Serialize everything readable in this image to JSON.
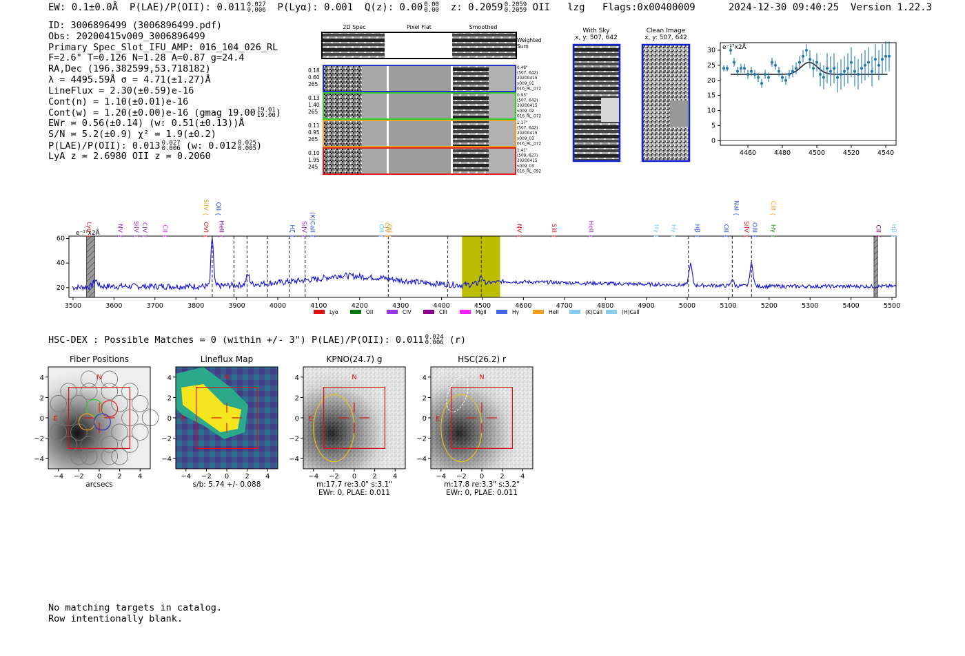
{
  "header": {
    "ew": "EW: 0.1±0.0Å",
    "plae_label": "P(LAE)/P(OII): 0.011",
    "plae_hi": "0.027",
    "plae_lo": "0.006",
    "plya": "P(Lyα): 0.001",
    "qz_label": "Q(z): 0.00",
    "qz_hi": "0.00",
    "qz_lo": "0.00",
    "z_label": "z: 0.2059",
    "z_hi": "0.2059",
    "z_lo": "0.2059",
    "line": "OII",
    "lzg": "lzg",
    "flags": "Flags:0x00400009",
    "timestamp": "2024-12-30 09:40:25",
    "version": "Version 1.22.3"
  },
  "info": {
    "id": "ID: 3006896499 (3006896499.pdf)",
    "obs": "Obs: 20200415v009_3006896499",
    "primary": "Primary Spec_Slot_IFU_AMP: 016_104_026_RL",
    "params": "F=2.6\"  T=0.126  N=1.28  A=0.87  g=24.4",
    "radec": "RA,Dec (196.382599,53.718182)",
    "lambda": "λ = 4495.59Å   σ = 4.71(±1.27)Å",
    "lineflux": "LineFlux = 2.30(±0.59)e-16",
    "contn": "Cont(n) = 1.10(±0.01)e-16",
    "contw": "Cont(w) = 1.20(±0.00)e-16 (gmag 19.00",
    "contw_hi": "19.01",
    "contw_lo": "19.00",
    "contw_close": ")",
    "ewr": "EWr = 0.56(±0.14) (w: 0.51(±0.13))Å",
    "sn": "S/N = 5.2(±0.9)  χ² = 1.9(±0.2)",
    "plae": "P(LAE)/P(OII): 0.013",
    "plae_hi": "0.027",
    "plae_lo": "0.006",
    "plae_w": "(w: 0.012",
    "plae_w_hi": "0.025",
    "plae_w_lo": "0.005",
    "plae_close": ")",
    "lyaz": "LyA z = 2.6980  OII z = 0.2060"
  },
  "cutouts": {
    "col_titles": [
      "2D Spec",
      "Pixel Flat",
      "Smoothed"
    ],
    "weighted_sum": [
      "Weighted",
      "Sum"
    ],
    "rows": [
      {
        "color": "#2233cc",
        "left": [
          "0.18",
          "0.60",
          "265"
        ],
        "right": [
          "0.48\"",
          "(507, 642)",
          "20200415",
          "v009_01",
          "016_RL_072"
        ]
      },
      {
        "color": "#33cc33",
        "left": [
          "0.13",
          "1.40",
          "265"
        ],
        "right": [
          "0.93\"",
          "(507, 642)",
          "20200415",
          "v009_02",
          "016_RL_072"
        ]
      },
      {
        "color": "#f0a020",
        "left": [
          "0.11",
          "0.95",
          "265"
        ],
        "right": [
          "1.17\"",
          "(507, 642)",
          "20200415",
          "v009_03",
          "016_RL_072"
        ]
      },
      {
        "color": "#dd2222",
        "left": [
          "0.10",
          "1.95",
          "245"
        ],
        "right": [
          "1.41\"",
          "(509, 627)",
          "20200415",
          "v009_03",
          "016_RL_092"
        ]
      }
    ],
    "with_sky": [
      "With Sky",
      "x, y: 507, 642"
    ],
    "clean_image": [
      "Clean Image",
      "x, y: 507, 642"
    ]
  },
  "zoom_chart": {
    "type": "scatter",
    "unit_label": "e⁻¹⁷x2Å",
    "xlim": [
      4444,
      4546
    ],
    "ylim": [
      -1.5,
      32.5
    ],
    "xticks": [
      4460,
      4480,
      4500,
      4520,
      4540
    ],
    "yticks": [
      0,
      5,
      10,
      15,
      20,
      25,
      30
    ],
    "x": [
      4446,
      4448,
      4450,
      4452,
      4454,
      4456,
      4458,
      4460,
      4462,
      4464,
      4466,
      4468,
      4470,
      4472,
      4474,
      4476,
      4478,
      4480,
      4482,
      4484,
      4486,
      4488,
      4490,
      4492,
      4494,
      4496,
      4498,
      4500,
      4502,
      4504,
      4506,
      4508,
      4510,
      4512,
      4514,
      4516,
      4518,
      4520,
      4522,
      4524,
      4526,
      4528,
      4530,
      4532,
      4534,
      4536,
      4538,
      4540,
      4542
    ],
    "y": [
      24,
      24,
      30,
      26,
      23,
      24,
      24,
      22,
      23,
      22,
      21,
      19,
      22,
      21,
      26,
      25,
      23,
      21,
      20,
      22,
      23,
      24,
      26,
      28,
      30,
      27,
      24,
      26,
      22,
      21,
      24,
      23,
      24,
      21,
      22,
      23,
      24,
      26,
      23,
      22,
      24,
      25,
      26,
      23,
      27,
      25,
      27,
      28,
      28
    ],
    "err": [
      1,
      1,
      1.5,
      1.5,
      1.5,
      1.5,
      1.5,
      1.5,
      1.5,
      1.5,
      1.5,
      1.5,
      1.5,
      1.5,
      1.5,
      1.5,
      1.5,
      1.5,
      1.5,
      1.5,
      2,
      2,
      2,
      2,
      2,
      3,
      3,
      3,
      4,
      4,
      5,
      5,
      5,
      5,
      5,
      5,
      5,
      5,
      5,
      5,
      5,
      5,
      5,
      5,
      5,
      5,
      5,
      5,
      5
    ],
    "fit_continuum": 22,
    "fit_center": 4495.59,
    "fit_sigma": 4.71,
    "fit_amp": 4
  },
  "spectrum": {
    "type": "line",
    "unit_label": "e⁻¹⁷x2Å",
    "xlim": [
      3490,
      5510
    ],
    "ylim": [
      12,
      62
    ],
    "xticks": [
      3500,
      3600,
      3700,
      3800,
      3900,
      4000,
      4100,
      4200,
      4300,
      4400,
      4500,
      4600,
      4700,
      4800,
      4900,
      5000,
      5100,
      5200,
      5300,
      5400,
      5500
    ],
    "yticks": [
      20,
      40,
      60
    ],
    "baseline": [
      [
        3500,
        20
      ],
      [
        3560,
        21
      ],
      [
        3700,
        21
      ],
      [
        3820,
        21
      ],
      [
        3900,
        22
      ],
      [
        4000,
        24
      ],
      [
        4100,
        27
      ],
      [
        4150,
        30
      ],
      [
        4250,
        28
      ],
      [
        4350,
        24
      ],
      [
        4450,
        22
      ],
      [
        4550,
        25
      ],
      [
        4700,
        24
      ],
      [
        4850,
        23
      ],
      [
        5000,
        22
      ],
      [
        5200,
        21
      ],
      [
        5400,
        21
      ],
      [
        5500,
        21
      ]
    ],
    "peaks": [
      {
        "x": 3840,
        "h": 40,
        "w": 3
      },
      {
        "x": 3555,
        "h": 5,
        "w": 5
      },
      {
        "x": 3927,
        "h": 8,
        "w": 4
      },
      {
        "x": 4497,
        "h": 6,
        "w": 4
      },
      {
        "x": 5008,
        "h": 17,
        "w": 4
      },
      {
        "x": 5110,
        "h": 6,
        "w": 3
      },
      {
        "x": 5157,
        "h": 18,
        "w": 4
      }
    ],
    "dashed_lines": [
      3840,
      3893,
      3925,
      3975,
      4028,
      4067,
      4270,
      4415,
      4497,
      5003,
      5110,
      5157
    ],
    "highlight": [
      4450,
      4543
    ],
    "hatched": [
      [
        3533,
        3553
      ],
      [
        5456,
        5465
      ]
    ],
    "lines": [
      {
        "label": "Lyα",
        "x": 3535,
        "color": "#dd2222",
        "row": 0
      },
      {
        "label": "NV",
        "x": 3610,
        "color": "#9933cc",
        "row": 0
      },
      {
        "label": "SiIV",
        "x": 3650,
        "color": "#9933cc",
        "row": 0
      },
      {
        "label": "CIV",
        "x": 3670,
        "color": "#9933cc",
        "row": 0
      },
      {
        "label": "CII",
        "x": 3720,
        "color": "#ee22ee",
        "row": 0
      },
      {
        "label": "OVI",
        "x": 3820,
        "color": "#dd2222",
        "row": 0
      },
      {
        "label": "SiIV",
        "x": 3820,
        "color": "#f0a020",
        "row": 1
      },
      {
        "label": "OII",
        "x": 3850,
        "color": "#2244cc",
        "row": 1
      },
      {
        "label": "HeII",
        "x": 3858,
        "color": "#880088",
        "row": 0
      },
      {
        "label": "Hζ",
        "x": 4030,
        "color": "#3355dd",
        "row": 0
      },
      {
        "label": "SiIV",
        "x": 4060,
        "color": "#9933cc",
        "row": 0
      },
      {
        "label": "(K)CaII",
        "x": 4080,
        "color": "#3355dd",
        "row": 0
      },
      {
        "label": "OII",
        "x": 4248,
        "color": "#66ccee",
        "row": 0
      },
      {
        "label": "OII",
        "x": 4268,
        "color": "#f0a020",
        "row": 0
      },
      {
        "label": "CIV",
        "x": 4262,
        "color": "#f0a020",
        "row": 0
      },
      {
        "label": "NV",
        "x": 4585,
        "color": "#dd2222",
        "row": 0
      },
      {
        "label": "SiII",
        "x": 4670,
        "color": "#dd2222",
        "row": 0
      },
      {
        "label": "HeII",
        "x": 4760,
        "color": "#9933cc",
        "row": 0
      },
      {
        "label": "Hγ",
        "x": 4920,
        "color": "#88ccee",
        "row": 0
      },
      {
        "label": "Hγ",
        "x": 4962,
        "color": "#88ccee",
        "row": 0
      },
      {
        "label": "Hβ",
        "x": 5020,
        "color": "#3355dd",
        "row": 0
      },
      {
        "label": "OII",
        "x": 5090,
        "color": "#3355dd",
        "row": 0
      },
      {
        "label": "NaI",
        "x": 5115,
        "color": "#3355dd",
        "row": 1
      },
      {
        "label": "SiIV",
        "x": 5140,
        "color": "#dd2222",
        "row": 0
      },
      {
        "label": "OIII",
        "x": 5160,
        "color": "#3355dd",
        "row": 0
      },
      {
        "label": "CIII",
        "x": 5205,
        "color": "#f0a020",
        "row": 1
      },
      {
        "label": "Hγ",
        "x": 5205,
        "color": "#228822",
        "row": 0
      },
      {
        "label": "CII",
        "x": 5462,
        "color": "#880088",
        "row": 0
      },
      {
        "label": "Hβ",
        "x": 5500,
        "color": "#88ccee",
        "row": 0
      }
    ],
    "legend": [
      {
        "label": "Lyα",
        "color": "#dd1111"
      },
      {
        "label": "OII",
        "color": "#117711"
      },
      {
        "label": "CIV",
        "color": "#9933ee"
      },
      {
        "label": "CIII",
        "color": "#880088"
      },
      {
        "label": "MgII",
        "color": "#ff22ff"
      },
      {
        "label": "Hγ",
        "color": "#4466ee"
      },
      {
        "label": "HeII",
        "color": "#f0a020"
      },
      {
        "label": "(K)CaII",
        "color": "#88ccee"
      },
      {
        "label": "(H)CaII",
        "color": "#88ccee"
      }
    ]
  },
  "hsc": {
    "text": "HSC-DEX : Possible Matches = 0 (within +/- 3\")  P(LAE)/P(OII): 0.011",
    "hi": "0.024",
    "lo": "0.006",
    "band": "(r)"
  },
  "panels": [
    {
      "title": "Fiber Positions",
      "below": [
        "arcsecs"
      ]
    },
    {
      "title": "Lineflux Map",
      "below": [
        "s/b: 5.74 +/- 0.088"
      ]
    },
    {
      "title": "KPNO(24.7) g",
      "below": [
        "m:17.7  re:3.0\"  s:3.1\"",
        "EWr: 0, PLAE: 0.011"
      ]
    },
    {
      "title": "HSC(26.2) r",
      "below": [
        "m:17.8  re:3.3\"  s:3.2\"",
        "EWr: 0, PLAE: 0.011"
      ]
    }
  ],
  "panel_axes": {
    "ticks": [
      -4,
      -2,
      0,
      2,
      4
    ],
    "north": "N",
    "east": "E"
  },
  "footer": [
    "No matching targets in catalog.",
    "Row intentionally blank."
  ]
}
